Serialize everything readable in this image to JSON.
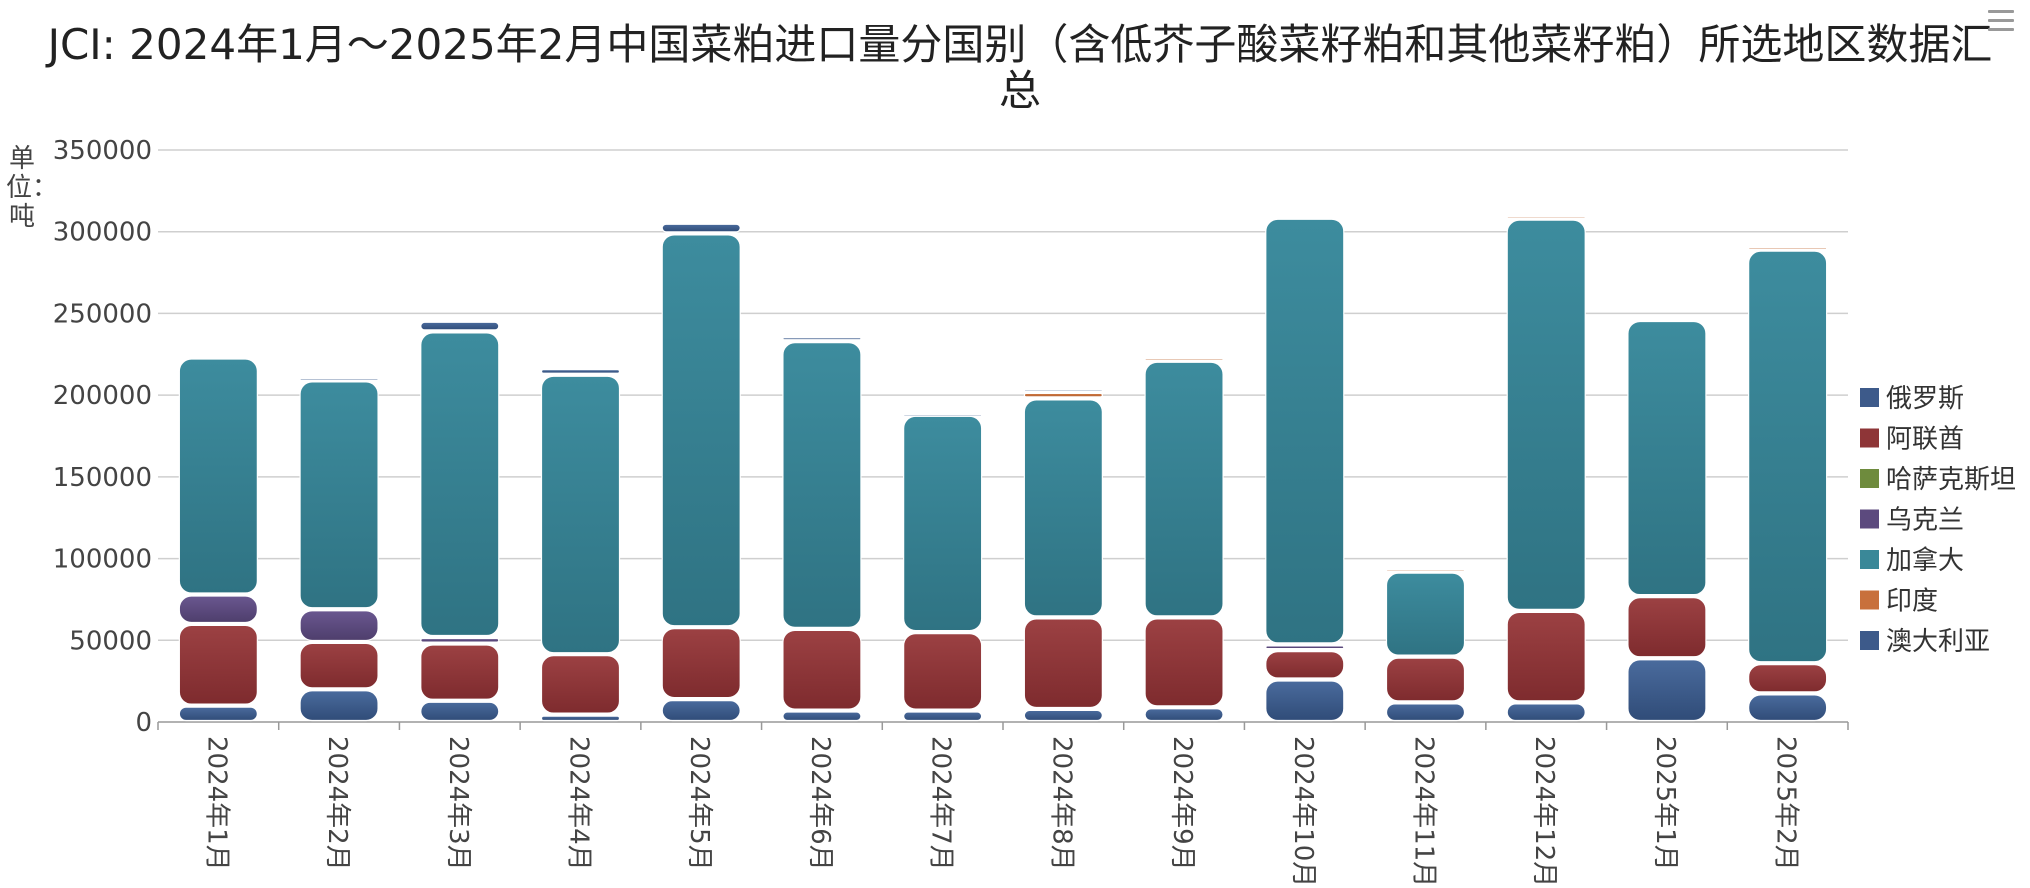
{
  "chart_data": {
    "type": "bar",
    "stacked": true,
    "title": "JCI: 2024年1月～2025年2月中国菜粕进口量分国别（含低芥子酸菜籽粕和其他菜籽粕）所选地区数据汇总",
    "ylabel": "单位：吨",
    "xlabel": "",
    "ylim": [
      0,
      350000
    ],
    "yticks": [
      "0",
      "50000",
      "100000",
      "150000",
      "200000",
      "250000",
      "300000",
      "350000"
    ],
    "grid": true,
    "legend_position": "right",
    "categories": [
      "2024年1月",
      "2024年2月",
      "2024年3月",
      "2024年4月",
      "2024年5月",
      "2024年6月",
      "2024年7月",
      "2024年8月",
      "2024年9月",
      "2024年10月",
      "2024年11月",
      "2024年12月",
      "2025年1月",
      "2025年2月"
    ],
    "series": [
      {
        "name": "澳大利亚",
        "color": "#3d5a8a",
        "values": [
          10000,
          20000,
          13000,
          4500,
          14000,
          7000,
          7000,
          8000,
          9000,
          26000,
          12000,
          12000,
          39000,
          17500
        ]
      },
      {
        "name": "印度",
        "color": "#c8703c",
        "values": [
          0,
          0,
          0,
          0,
          0,
          0,
          0,
          4000,
          2000,
          0,
          2000,
          2000,
          0,
          2000
        ]
      },
      {
        "name": "加拿大",
        "color": "#3a8898",
        "values": [
          145000,
          140000,
          187000,
          171000,
          241000,
          176000,
          133000,
          134000,
          157000,
          261000,
          52000,
          240000,
          169000,
          253000
        ]
      },
      {
        "name": "乌克兰",
        "color": "#5c4a7e",
        "values": [
          18000,
          20000,
          4000,
          0,
          0,
          0,
          0,
          0,
          0,
          3500,
          0,
          0,
          0,
          0
        ]
      },
      {
        "name": "哈萨克斯坦",
        "color": "#6e8b3d",
        "values": [
          0,
          0,
          0,
          0,
          0,
          0,
          0,
          0,
          0,
          0,
          0,
          0,
          0,
          0
        ]
      },
      {
        "name": "阿联酋",
        "color": "#8e3537",
        "values": [
          50000,
          29000,
          35000,
          37000,
          44000,
          50000,
          48000,
          56000,
          55000,
          18000,
          28000,
          56000,
          38000,
          18500
        ]
      },
      {
        "name": "俄罗斯",
        "color": "#3d5a8a",
        "values": [
          0,
          2000,
          6500,
          4000,
          6500,
          3000,
          1000,
          2000,
          0,
          0,
          0,
          0,
          0,
          0
        ]
      }
    ],
    "stack_order": [
      "澳大利亚",
      "阿联酋",
      "乌克兰",
      "加拿大",
      "印度",
      "俄罗斯"
    ],
    "legend_order": [
      "俄罗斯",
      "阿联酋",
      "哈萨克斯坦",
      "乌克兰",
      "加拿大",
      "印度",
      "澳大利亚"
    ]
  }
}
